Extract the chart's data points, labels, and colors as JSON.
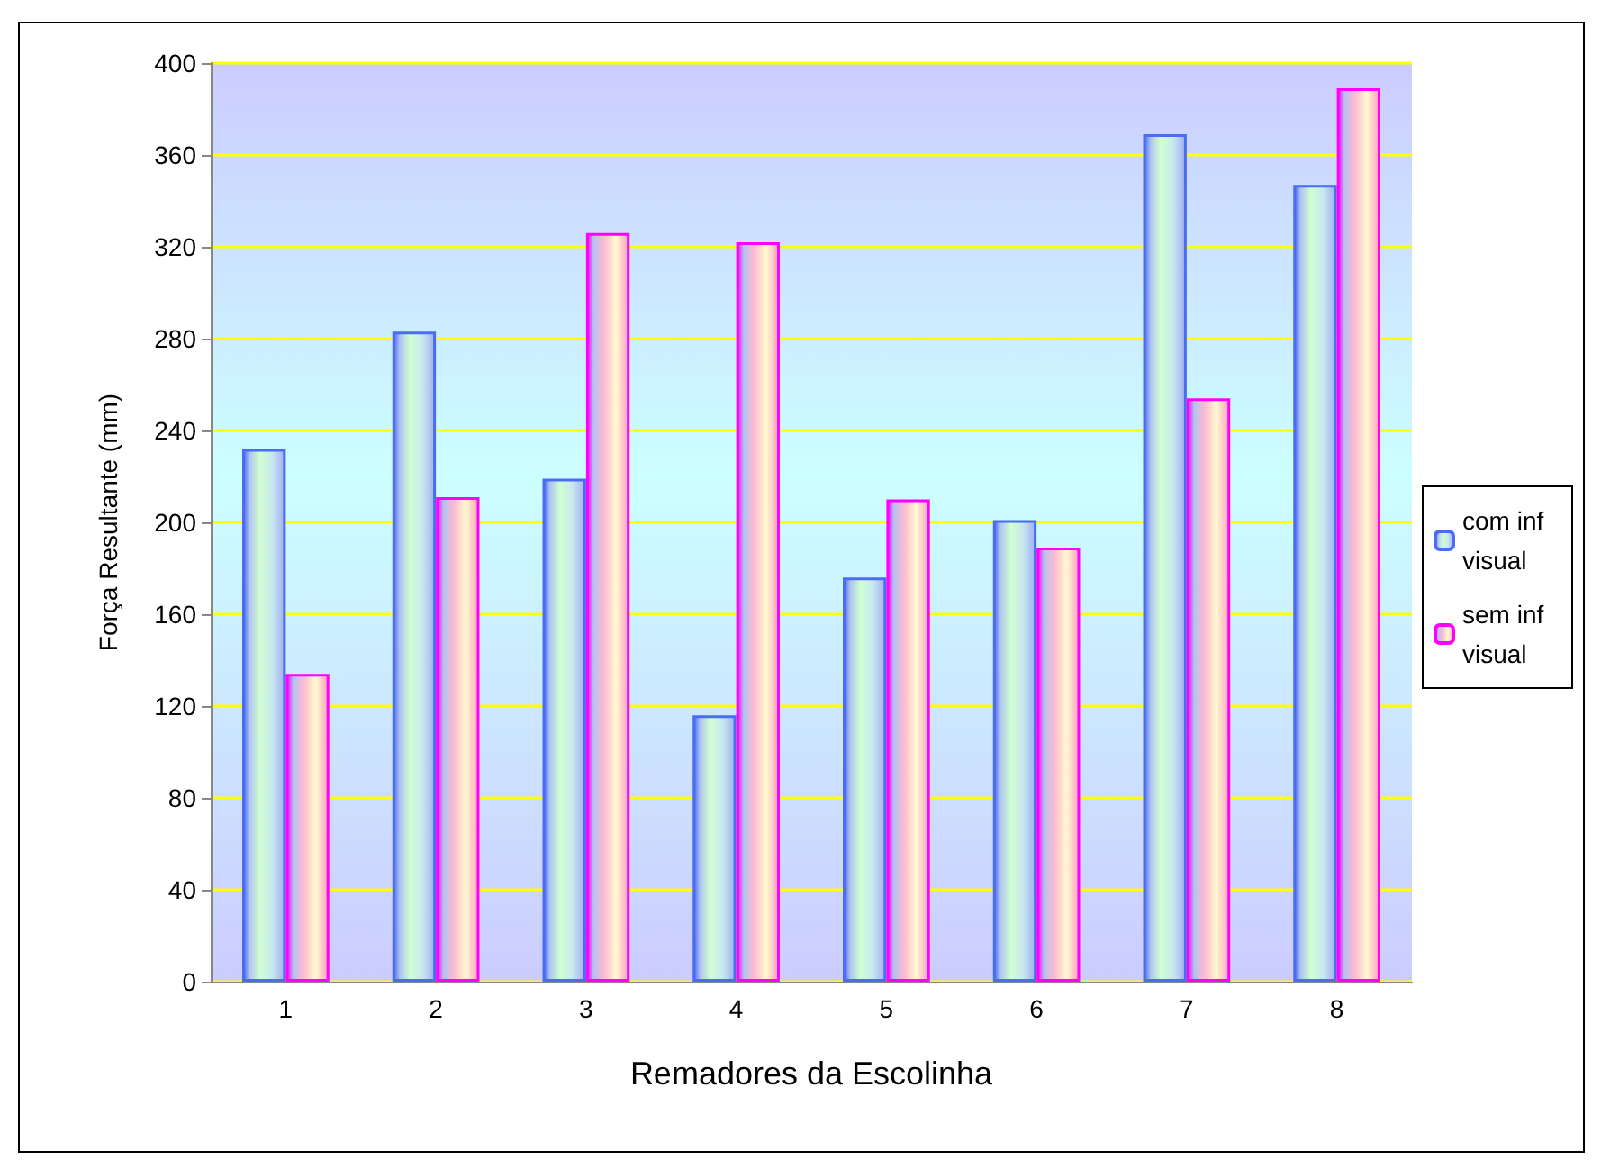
{
  "chart_data": {
    "type": "bar",
    "xlabel": "Remadores da Escolinha",
    "ylabel": "Força Resultante (mm)",
    "categories": [
      "1",
      "2",
      "3",
      "4",
      "5",
      "6",
      "7",
      "8"
    ],
    "series": [
      {
        "name": "com inf visual",
        "color": "#4a6cf2",
        "values": [
          232,
          283,
          219,
          116,
          176,
          201,
          369,
          347
        ]
      },
      {
        "name": "sem inf visual",
        "color": "#ff00ff",
        "values": [
          134,
          211,
          326,
          322,
          210,
          189,
          254,
          389
        ]
      }
    ],
    "ylim": [
      0,
      400
    ],
    "yticks": [
      0,
      40,
      80,
      120,
      160,
      200,
      240,
      280,
      320,
      360,
      400
    ],
    "grid": "y",
    "legend": "right"
  }
}
